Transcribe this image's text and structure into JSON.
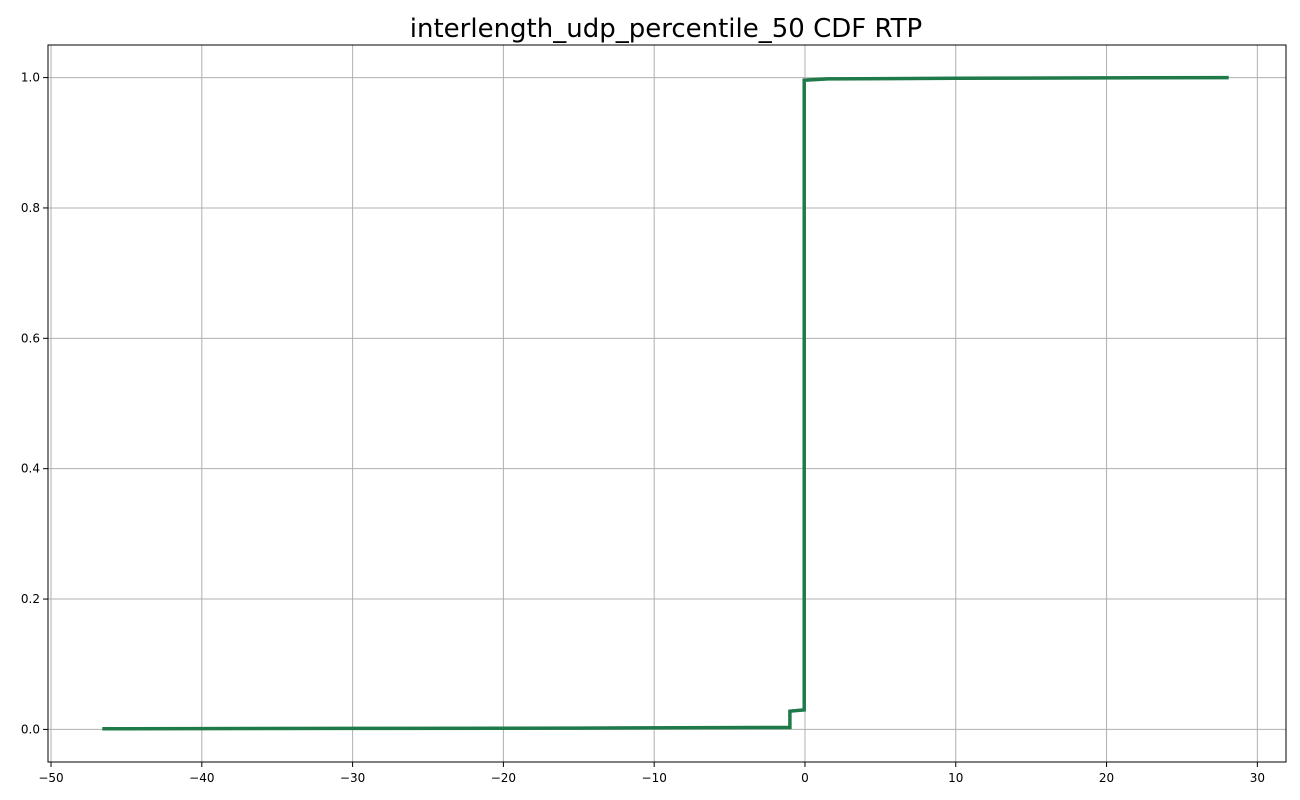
{
  "chart_data": {
    "type": "line",
    "title": "interlength_udp_percentile_50 CDF RTP",
    "xlabel": "",
    "ylabel": "",
    "xlim": [
      -50.2,
      31.9
    ],
    "ylim": [
      -0.05,
      1.05
    ],
    "x_ticks": [
      -50,
      -40,
      -30,
      -20,
      -10,
      0,
      10,
      20,
      30
    ],
    "x_tick_labels": [
      "−50",
      "−40",
      "−30",
      "−20",
      "−10",
      "0",
      "10",
      "20",
      "30"
    ],
    "y_ticks": [
      0.0,
      0.2,
      0.4,
      0.6,
      0.8,
      1.0
    ],
    "y_tick_labels": [
      "0.0",
      "0.2",
      "0.4",
      "0.6",
      "0.8",
      "1.0"
    ],
    "grid": true,
    "legend": "none",
    "colors": {
      "line": "#1f7a4a",
      "grid": "#b0b0b0",
      "axis": "#000000"
    },
    "series": [
      {
        "values": [
          {
            "x": -46.6,
            "y": 0.001
          },
          {
            "x": -30.0,
            "y": 0.0015
          },
          {
            "x": -15.0,
            "y": 0.002
          },
          {
            "x": -1.0,
            "y": 0.003
          },
          {
            "x": -1.0,
            "y": 0.028
          },
          {
            "x": -0.05,
            "y": 0.03
          },
          {
            "x": -0.05,
            "y": 0.996
          },
          {
            "x": 1.5,
            "y": 0.998
          },
          {
            "x": 10.0,
            "y": 0.999
          },
          {
            "x": 28.1,
            "y": 1.0
          }
        ]
      }
    ]
  }
}
